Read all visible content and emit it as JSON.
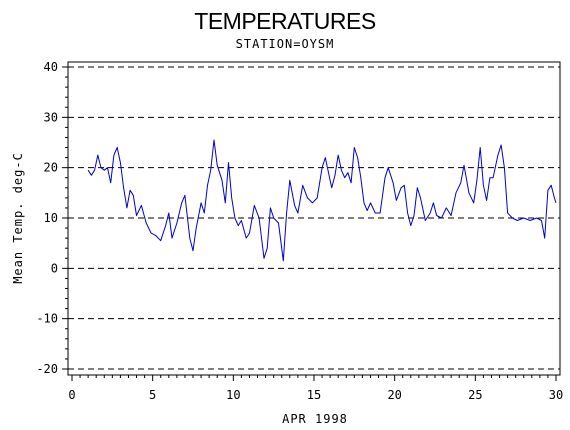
{
  "chart_data": {
    "type": "line",
    "title": "TEMPERATURES",
    "subtitle": "STATION=OYSM",
    "xlabel": "APR 1998",
    "ylabel": "Mean Temp. deg-C",
    "xlim": [
      0,
      30
    ],
    "ylim": [
      -20,
      40
    ],
    "x_ticks": [
      0,
      5,
      10,
      15,
      20,
      25,
      30
    ],
    "y_ticks": [
      -20,
      -10,
      0,
      10,
      20,
      30,
      40
    ],
    "grid": "horizontal-dashed",
    "colors": {
      "series": "#0000cc",
      "axis": "#000000"
    },
    "series": [
      {
        "points": [
          [
            1.0,
            19.5
          ],
          [
            1.2,
            18.5
          ],
          [
            1.4,
            19.5
          ],
          [
            1.6,
            22.5
          ],
          [
            1.8,
            20.0
          ],
          [
            2.0,
            19.5
          ],
          [
            2.2,
            20.0
          ],
          [
            2.4,
            17.0
          ],
          [
            2.6,
            22.5
          ],
          [
            2.8,
            24.0
          ],
          [
            3.0,
            21.0
          ],
          [
            3.2,
            16.0
          ],
          [
            3.4,
            12.0
          ],
          [
            3.6,
            15.5
          ],
          [
            3.8,
            14.5
          ],
          [
            4.0,
            10.5
          ],
          [
            4.3,
            12.5
          ],
          [
            4.6,
            9.0
          ],
          [
            4.9,
            7.0
          ],
          [
            5.2,
            6.5
          ],
          [
            5.5,
            5.5
          ],
          [
            5.8,
            8.5
          ],
          [
            6.0,
            11.0
          ],
          [
            6.2,
            6.0
          ],
          [
            6.5,
            9.0
          ],
          [
            6.8,
            13.0
          ],
          [
            7.0,
            14.5
          ],
          [
            7.3,
            6.0
          ],
          [
            7.5,
            3.5
          ],
          [
            7.7,
            8.0
          ],
          [
            8.0,
            13.0
          ],
          [
            8.2,
            11.0
          ],
          [
            8.4,
            16.5
          ],
          [
            8.6,
            19.5
          ],
          [
            8.8,
            25.5
          ],
          [
            9.0,
            20.5
          ],
          [
            9.3,
            17.5
          ],
          [
            9.5,
            13.0
          ],
          [
            9.7,
            21.0
          ],
          [
            9.9,
            14.0
          ],
          [
            10.1,
            10.0
          ],
          [
            10.3,
            8.5
          ],
          [
            10.5,
            9.5
          ],
          [
            10.8,
            6.0
          ],
          [
            11.0,
            7.0
          ],
          [
            11.3,
            12.5
          ],
          [
            11.6,
            10.0
          ],
          [
            11.9,
            2.0
          ],
          [
            12.1,
            4.0
          ],
          [
            12.3,
            12.0
          ],
          [
            12.5,
            10.0
          ],
          [
            12.8,
            9.0
          ],
          [
            13.1,
            1.5
          ],
          [
            13.3,
            11.0
          ],
          [
            13.5,
            17.5
          ],
          [
            13.8,
            12.5
          ],
          [
            14.0,
            11.0
          ],
          [
            14.3,
            16.5
          ],
          [
            14.6,
            14.0
          ],
          [
            14.9,
            13.0
          ],
          [
            15.2,
            14.0
          ],
          [
            15.5,
            20.0
          ],
          [
            15.7,
            22.0
          ],
          [
            15.9,
            19.0
          ],
          [
            16.1,
            16.0
          ],
          [
            16.3,
            18.5
          ],
          [
            16.5,
            22.5
          ],
          [
            16.7,
            19.5
          ],
          [
            16.9,
            18.0
          ],
          [
            17.1,
            19.0
          ],
          [
            17.3,
            17.0
          ],
          [
            17.5,
            24.0
          ],
          [
            17.7,
            22.0
          ],
          [
            17.9,
            18.0
          ],
          [
            18.1,
            13.0
          ],
          [
            18.3,
            11.5
          ],
          [
            18.5,
            13.0
          ],
          [
            18.8,
            11.0
          ],
          [
            19.1,
            11.0
          ],
          [
            19.4,
            18.0
          ],
          [
            19.6,
            20.0
          ],
          [
            19.9,
            17.0
          ],
          [
            20.1,
            13.5
          ],
          [
            20.4,
            16.0
          ],
          [
            20.6,
            16.5
          ],
          [
            20.8,
            11.0
          ],
          [
            21.0,
            8.5
          ],
          [
            21.2,
            10.5
          ],
          [
            21.4,
            16.0
          ],
          [
            21.6,
            14.0
          ],
          [
            21.9,
            9.5
          ],
          [
            22.2,
            11.0
          ],
          [
            22.4,
            13.0
          ],
          [
            22.6,
            10.5
          ],
          [
            22.9,
            10.0
          ],
          [
            23.2,
            12.0
          ],
          [
            23.5,
            10.5
          ],
          [
            23.8,
            15.0
          ],
          [
            24.1,
            17.0
          ],
          [
            24.3,
            20.5
          ],
          [
            24.6,
            15.0
          ],
          [
            24.9,
            13.0
          ],
          [
            25.1,
            17.5
          ],
          [
            25.3,
            24.0
          ],
          [
            25.5,
            16.5
          ],
          [
            25.7,
            13.5
          ],
          [
            25.9,
            18.0
          ],
          [
            26.1,
            18.0
          ],
          [
            26.4,
            22.5
          ],
          [
            26.6,
            24.5
          ],
          [
            26.8,
            20.0
          ],
          [
            27.0,
            11.0
          ],
          [
            27.3,
            10.0
          ],
          [
            27.6,
            9.5
          ],
          [
            28.0,
            10.0
          ],
          [
            28.4,
            9.5
          ],
          [
            28.8,
            10.0
          ],
          [
            29.1,
            9.5
          ],
          [
            29.3,
            6.0
          ],
          [
            29.5,
            15.5
          ],
          [
            29.7,
            16.5
          ],
          [
            29.9,
            14.0
          ],
          [
            30.0,
            13.0
          ]
        ]
      }
    ]
  }
}
